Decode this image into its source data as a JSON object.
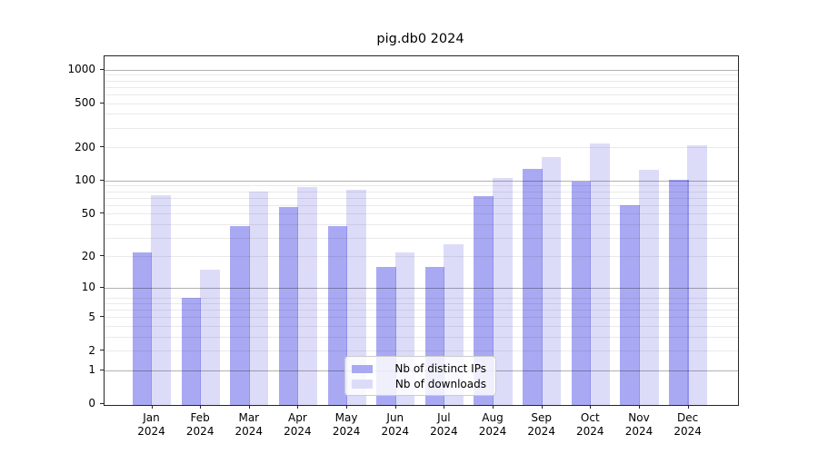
{
  "title": "pig.db0 2024",
  "legend": {
    "items": [
      {
        "label": "Nb of distinct IPs",
        "color": "#a9a9f3"
      },
      {
        "label": "Nb of downloads",
        "color": "#dcdcf9"
      }
    ]
  },
  "colors": {
    "series_dark": "#a9a9f3",
    "series_light": "#dcdcf9",
    "grid_major": "#b2b2b2",
    "grid_minor": "#eaeaea",
    "axis": "#262626"
  },
  "chart_data": {
    "type": "bar",
    "title": "pig.db0 2024",
    "categories": [
      "Jan",
      "Feb",
      "Mar",
      "Apr",
      "May",
      "Jun",
      "Jul",
      "Aug",
      "Sep",
      "Oct",
      "Nov",
      "Dec"
    ],
    "category_year": "2024",
    "series": [
      {
        "name": "Nb of distinct IPs",
        "color": "#a9a9f3",
        "values": [
          22,
          8,
          38,
          57,
          38,
          16,
          16,
          72,
          128,
          97,
          60,
          101
        ]
      },
      {
        "name": "Nb of downloads",
        "color": "#dcdcf9",
        "values": [
          73,
          15,
          80,
          88,
          82,
          22,
          26,
          105,
          163,
          218,
          124,
          207
        ]
      }
    ],
    "xlabel": "",
    "ylabel": "",
    "yscale": "log1p",
    "yticks": [
      0,
      1,
      2,
      5,
      10,
      20,
      50,
      100,
      200,
      500,
      1000
    ],
    "minor_gridlines": [
      3,
      4,
      6,
      7,
      8,
      30,
      40,
      60,
      70,
      80,
      90,
      300,
      400,
      600,
      700,
      800,
      900
    ],
    "major_gridlines": [
      1,
      10,
      100,
      1000
    ],
    "ylim": [
      0,
      1290
    ],
    "grid": "horizontal",
    "legend_position": "lower center"
  }
}
